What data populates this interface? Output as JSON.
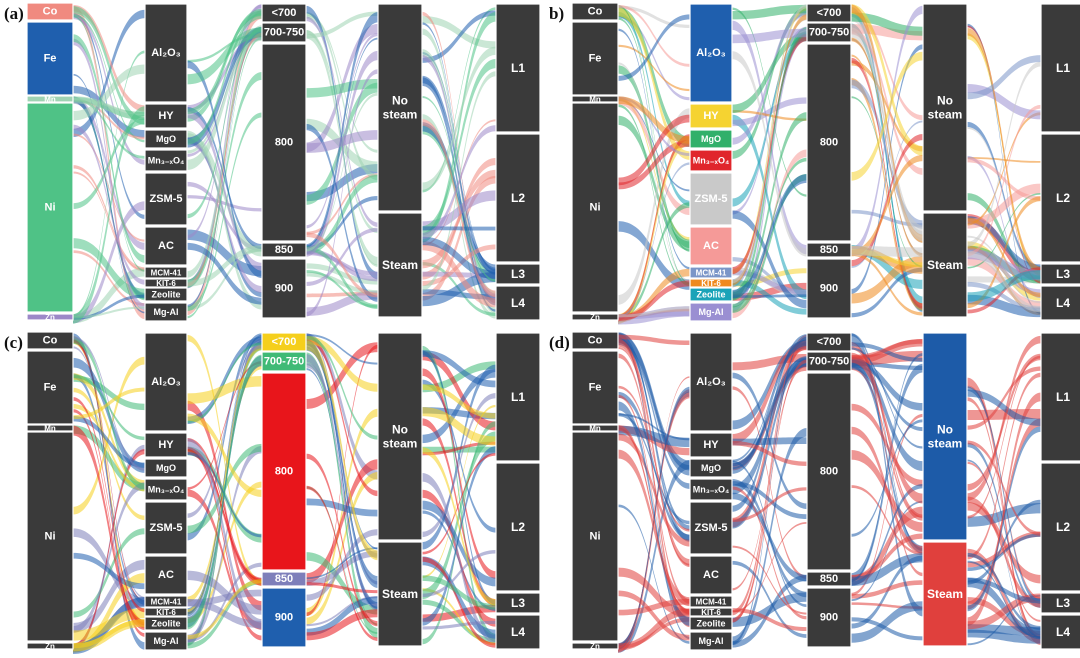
{
  "columns": {
    "metals": [
      "Co",
      "Fe",
      "Mn",
      "Ni",
      "Zn"
    ],
    "supports": [
      "Al2O3",
      "HY",
      "MgO",
      "Mn3-xO4",
      "ZSM-5",
      "AC",
      "MCM-41",
      "KIT-6",
      "Zeolite",
      "Mg-Al"
    ],
    "temperatures": [
      "<700",
      "700-750",
      "800",
      "850",
      "900"
    ],
    "steam": [
      "No steam",
      "Steam"
    ],
    "levels": [
      "L1",
      "L2",
      "L3",
      "L4"
    ]
  },
  "panels": [
    {
      "label": "(a)",
      "highlight_column": "metals",
      "palette": {
        "Co": "#f08a80",
        "Fe": "#1f5fae",
        "Mn": "#9fd3b3",
        "Ni": "#4fc286",
        "Zn": "#9c88c8"
      }
    },
    {
      "label": "b)",
      "highlight_column": "supports",
      "palette": {
        "Al2O3": "#1f5fae",
        "HY": "#f5d331",
        "MgO": "#31b06a",
        "Mn3-xO4": "#e0262c",
        "ZSM-5": "#c9c9c9",
        "AC": "#f59a98",
        "MCM-41": "#7b96c8",
        "KIT-6": "#ef8a1f",
        "Zeolite": "#1aa3b8",
        "Mg-Al": "#9a8fd2"
      }
    },
    {
      "label": "(c)",
      "highlight_column": "temperatures",
      "palette": {
        "<700": "#f5cf1c",
        "700-750": "#3fba76",
        "800": "#e8151b",
        "850": "#7e7fba",
        "900": "#1f5fae"
      }
    },
    {
      "label": "(d)",
      "highlight_column": "steam",
      "palette": {
        "No steam": "#1d5ba8",
        "Steam": "#e0403d"
      }
    }
  ],
  "node_labels": {
    "Co": "Co",
    "Fe": "Fe",
    "Mn": "Mn",
    "Ni": "Ni",
    "Zn": "Zn",
    "Al2O3": "Al₂O₃",
    "HY": "HY",
    "MgO": "MgO",
    "Mn3-xO4": "Mn₃₋ₓO₄",
    "ZSM-5": "ZSM-5",
    "AC": "AC",
    "MCM-41": "MCM-41",
    "KIT-6": "KIT-6",
    "Zeolite": "Zeolite",
    "Mg-Al": "Mg-Al",
    "<700": "<700",
    "700-750": "700-750",
    "800": "800",
    "850": "850",
    "900": "900",
    "No steam": "No\nsteam",
    "Steam": "Steam",
    "L1": "L1",
    "L2": "L2",
    "L3": "L3",
    "L4": "L4"
  },
  "colors": {
    "node_dark": "#3a3a3a",
    "background": "#ffffff"
  }
}
